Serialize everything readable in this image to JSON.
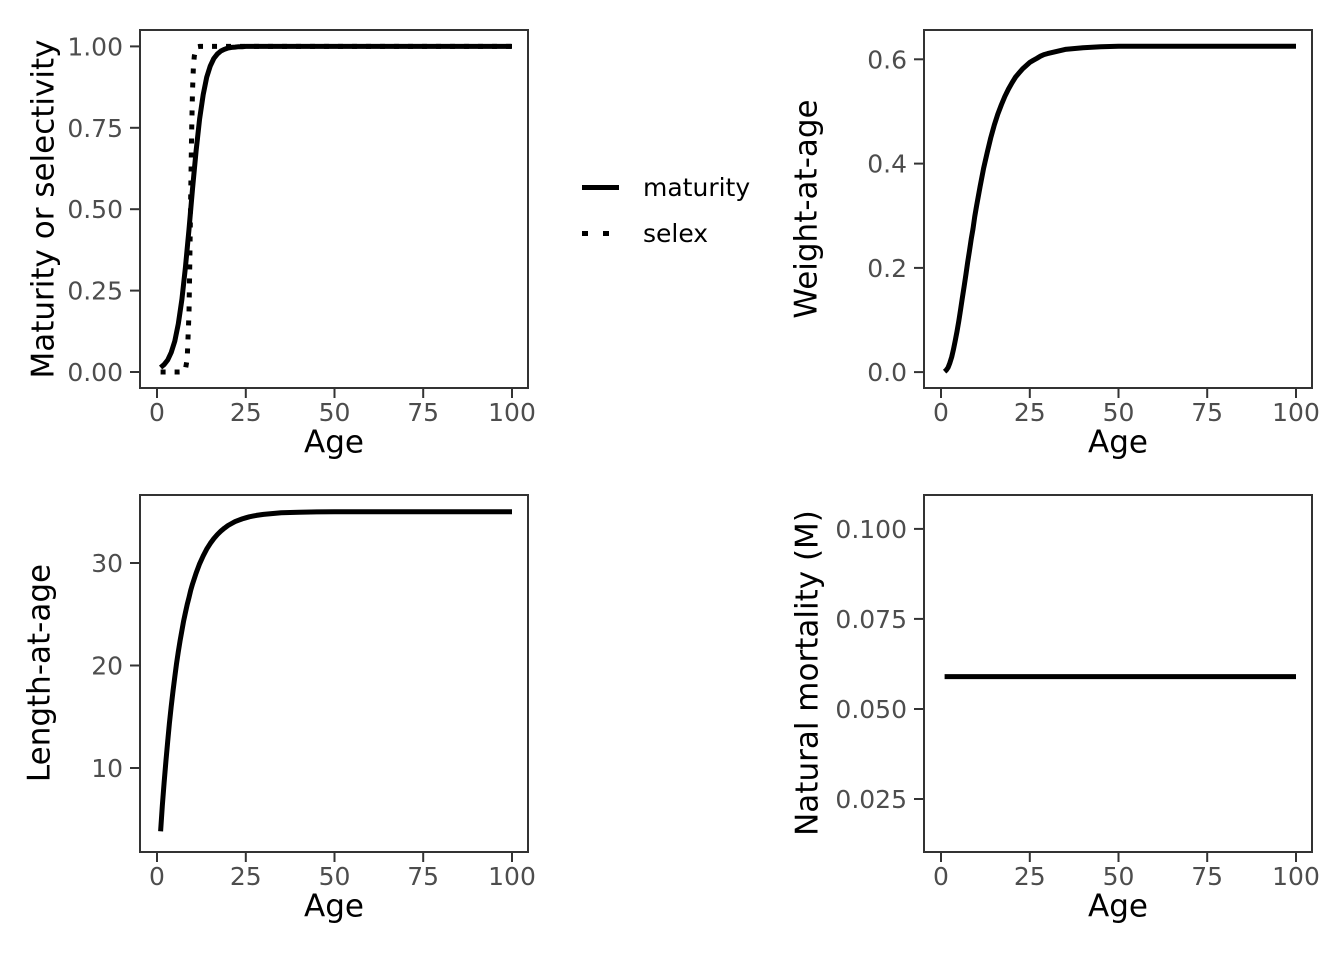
{
  "figure": {
    "background": "#ffffff"
  },
  "style": {
    "line_color": "#000000",
    "panel_border_color": "#333333",
    "tick_color": "#333333",
    "tick_label_color": "#4d4d4d",
    "axis_title_color": "#000000",
    "line_width": 5,
    "dotted_dash": "5 9"
  },
  "legend": {
    "position": "center-between-top-panels",
    "items": [
      {
        "label": "maturity",
        "linetype": "solid"
      },
      {
        "label": "selex",
        "linetype": "dotted"
      }
    ]
  },
  "chart_data": [
    {
      "id": "maturity-selectivity",
      "type": "line",
      "title": "",
      "xlabel": "Age",
      "ylabel": "Maturity or selectivity",
      "xlim": [
        -4.79,
        104.51
      ],
      "ylim": [
        -0.049,
        1.0504
      ],
      "grid": false,
      "xticks": {
        "values": [
          0,
          25,
          50,
          75,
          100
        ],
        "labels": [
          "0",
          "25",
          "50",
          "75",
          "100"
        ]
      },
      "yticks": {
        "values": [
          0,
          0.25,
          0.5,
          0.75,
          1
        ],
        "labels": [
          "0.00",
          "0.25",
          "0.50",
          "0.75",
          "1.00"
        ]
      },
      "series": [
        {
          "name": "maturity",
          "linetype": "solid",
          "x": [
            1,
            2,
            3,
            4,
            5,
            6,
            7,
            8,
            9,
            10,
            11,
            12,
            13,
            14,
            15,
            16,
            17,
            18,
            19,
            20,
            21,
            22,
            23,
            24,
            25,
            26,
            27,
            28,
            29,
            30,
            35,
            40,
            45,
            50,
            60,
            70,
            80,
            90,
            100
          ],
          "y": [
            0.014,
            0.023,
            0.037,
            0.06,
            0.095,
            0.148,
            0.223,
            0.321,
            0.438,
            0.562,
            0.679,
            0.777,
            0.852,
            0.905,
            0.94,
            0.963,
            0.977,
            0.986,
            0.991,
            0.995,
            0.997,
            0.998,
            0.999,
            0.999,
            1,
            1,
            1,
            1,
            1,
            1,
            1,
            1,
            1,
            1,
            1,
            1,
            1,
            1,
            1
          ]
        },
        {
          "name": "selex",
          "linetype": "dotted",
          "x": [
            1,
            5,
            6,
            7,
            7.5,
            8,
            8.5,
            9,
            9.25,
            9.5,
            9.75,
            10,
            10.25,
            10.5,
            11,
            11.5,
            12,
            13,
            14,
            15,
            20,
            25,
            30,
            40,
            50,
            60,
            70,
            80,
            90,
            100
          ],
          "y": [
            0,
            0,
            0,
            0.0003,
            0.0015,
            0.008,
            0.04,
            0.182,
            0.339,
            0.541,
            0.731,
            0.863,
            0.937,
            0.97,
            0.994,
            0.999,
            1,
            1,
            1,
            1,
            1,
            1,
            1,
            1,
            1,
            1,
            1,
            1,
            1,
            1
          ]
        }
      ]
    },
    {
      "id": "weight-at-age",
      "type": "line",
      "title": "",
      "xlabel": "Age",
      "ylabel": "Weight-at-age",
      "xlim": [
        -4.79,
        104.51
      ],
      "ylim": [
        -0.0304,
        0.6562
      ],
      "grid": false,
      "xticks": {
        "values": [
          0,
          25,
          50,
          75,
          100
        ],
        "labels": [
          "0",
          "25",
          "50",
          "75",
          "100"
        ]
      },
      "yticks": {
        "values": [
          0,
          0.2,
          0.4,
          0.6
        ],
        "labels": [
          "0.0",
          "0.2",
          "0.4",
          "0.6"
        ]
      },
      "series": [
        {
          "name": "weight",
          "linetype": "solid",
          "x": [
            1,
            1.5,
            2,
            2.5,
            3,
            3.5,
            4,
            4.5,
            5,
            5.5,
            6,
            6.5,
            7,
            7.5,
            8,
            8.5,
            9,
            9.5,
            10,
            11,
            12,
            13,
            14,
            15,
            16,
            17,
            18,
            19,
            20,
            21,
            22,
            23,
            24,
            25,
            26,
            27,
            28,
            29,
            30,
            35,
            40,
            45,
            50,
            60,
            70,
            80,
            90,
            100
          ],
          "y": [
            0.001,
            0.004,
            0.009,
            0.018,
            0.029,
            0.043,
            0.06,
            0.078,
            0.098,
            0.119,
            0.142,
            0.164,
            0.187,
            0.21,
            0.232,
            0.255,
            0.275,
            0.298,
            0.318,
            0.356,
            0.391,
            0.421,
            0.449,
            0.474,
            0.495,
            0.513,
            0.529,
            0.543,
            0.555,
            0.566,
            0.574,
            0.582,
            0.588,
            0.594,
            0.598,
            0.602,
            0.606,
            0.609,
            0.611,
            0.619,
            0.622,
            0.624,
            0.625,
            0.625,
            0.625,
            0.625,
            0.625,
            0.625
          ]
        }
      ]
    },
    {
      "id": "length-at-age",
      "type": "line",
      "title": "",
      "xlabel": "Age",
      "ylabel": "Length-at-age",
      "xlim": [
        -4.79,
        104.51
      ],
      "ylim": [
        1.8,
        36.63
      ],
      "grid": false,
      "xticks": {
        "values": [
          0,
          25,
          50,
          75,
          100
        ],
        "labels": [
          "0",
          "25",
          "50",
          "75",
          "100"
        ]
      },
      "yticks": {
        "values": [
          10,
          20,
          30
        ],
        "labels": [
          "10",
          "20",
          "30"
        ]
      },
      "series": [
        {
          "name": "length",
          "linetype": "solid",
          "x": [
            1,
            1.5,
            2,
            2.5,
            3,
            3.5,
            4,
            4.5,
            5,
            5.5,
            6,
            6.5,
            7,
            7.5,
            8,
            8.5,
            9,
            9.5,
            10,
            11,
            12,
            13,
            14,
            15,
            16,
            17,
            18,
            19,
            20,
            21,
            22,
            23,
            24,
            25,
            26,
            27,
            28,
            29,
            30,
            35,
            40,
            45,
            50,
            60,
            70,
            80,
            90,
            100
          ],
          "y": [
            3.82,
            6.29,
            8.55,
            10.65,
            12.59,
            14.36,
            16.0,
            17.5,
            18.89,
            20.16,
            21.33,
            22.42,
            23.4,
            24.33,
            25.15,
            25.95,
            26.63,
            27.33,
            27.94,
            29.01,
            29.92,
            30.69,
            31.35,
            31.91,
            32.38,
            32.78,
            33.11,
            33.4,
            33.65,
            33.85,
            34.03,
            34.17,
            34.3,
            34.41,
            34.5,
            34.57,
            34.64,
            34.69,
            34.74,
            34.89,
            34.95,
            34.98,
            34.99,
            35.0,
            35.0,
            35.0,
            35.0,
            35.0
          ]
        }
      ]
    },
    {
      "id": "natural-mortality",
      "type": "line",
      "title": "",
      "xlabel": "Age",
      "ylabel": "Natural mortality (M)",
      "xlim": [
        -4.79,
        104.51
      ],
      "ylim": [
        0.0103,
        0.1094
      ],
      "grid": false,
      "xticks": {
        "values": [
          0,
          25,
          50,
          75,
          100
        ],
        "labels": [
          "0",
          "25",
          "50",
          "75",
          "100"
        ]
      },
      "yticks": {
        "values": [
          0.025,
          0.05,
          0.075,
          0.1
        ],
        "labels": [
          "0.025",
          "0.050",
          "0.075",
          "0.100"
        ]
      },
      "series": [
        {
          "name": "M",
          "linetype": "solid",
          "x": [
            1,
            100
          ],
          "y": [
            0.059,
            0.059
          ]
        }
      ]
    }
  ]
}
